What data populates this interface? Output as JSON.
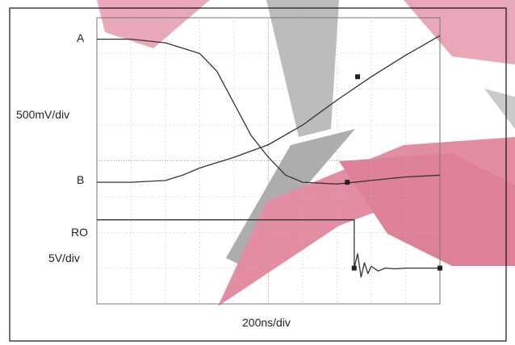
{
  "chart_data": {
    "type": "line",
    "title": "",
    "xlabel": "200ns/div",
    "ylabel_top": "500mV/div",
    "ylabel_bottom": "5V/div",
    "x_divisions": 10,
    "y_divisions": 8,
    "grid": true,
    "x_unit": "div",
    "y_unit": "div",
    "trace_labels": [
      "A",
      "B",
      "RO"
    ],
    "series": [
      {
        "name": "A",
        "x": [
          0,
          1,
          2,
          3,
          3.5,
          4,
          4.5,
          5,
          5.5,
          6,
          7,
          8,
          9,
          10
        ],
        "y": [
          7.4,
          7.4,
          7.3,
          7.0,
          6.5,
          5.6,
          4.7,
          4.1,
          3.6,
          3.4,
          3.35,
          3.45,
          3.55,
          3.6
        ]
      },
      {
        "name": "B",
        "x": [
          0,
          1,
          2,
          2.5,
          3,
          4,
          5,
          6,
          7,
          8,
          9,
          10
        ],
        "y": [
          3.4,
          3.4,
          3.45,
          3.6,
          3.8,
          4.1,
          4.45,
          5.0,
          5.7,
          6.35,
          6.95,
          7.5
        ]
      },
      {
        "name": "RO",
        "x": [
          0,
          7.5,
          7.5,
          7.6,
          7.7,
          7.8,
          7.9,
          8.0,
          8.2,
          8.4,
          8.7,
          9.0,
          10
        ],
        "y": [
          2.35,
          2.35,
          1.0,
          1.4,
          0.75,
          1.15,
          0.85,
          1.05,
          0.92,
          1.0,
          0.98,
          1.0,
          1.0
        ]
      }
    ]
  }
}
